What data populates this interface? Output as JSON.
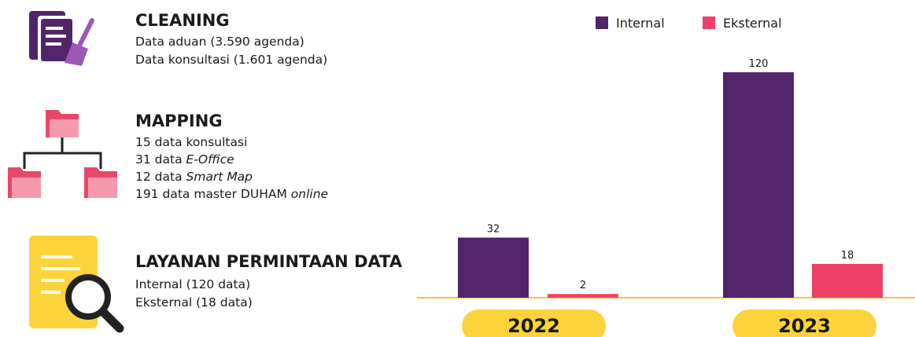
{
  "sections": [
    {
      "title": "CLEANING",
      "lines": [
        {
          "text": "Data aduan (3.590 agenda)"
        },
        {
          "text": "Data konsultasi (1.601 agenda)"
        }
      ]
    },
    {
      "title": "MAPPING",
      "lines": [
        {
          "text": "15 data konsultasi"
        },
        {
          "text": "31 data ",
          "em": "E-Office"
        },
        {
          "text": "12 data ",
          "em": "Smart Map"
        },
        {
          "text": "191 data master DUHAM ",
          "em": "online"
        }
      ]
    },
    {
      "title": "LAYANAN PERMINTAAN DATA",
      "lines": [
        {
          "text": "Internal (120 data)"
        },
        {
          "text": "Eksternal (18 data)"
        }
      ]
    }
  ],
  "chart_data": {
    "type": "bar",
    "categories": [
      "2022",
      "2023"
    ],
    "series": [
      {
        "name": "Internal",
        "color": "#52246a",
        "values": [
          32,
          120
        ]
      },
      {
        "name": "Eksternal",
        "color": "#ef4168",
        "values": [
          2,
          18
        ]
      }
    ]
  }
}
